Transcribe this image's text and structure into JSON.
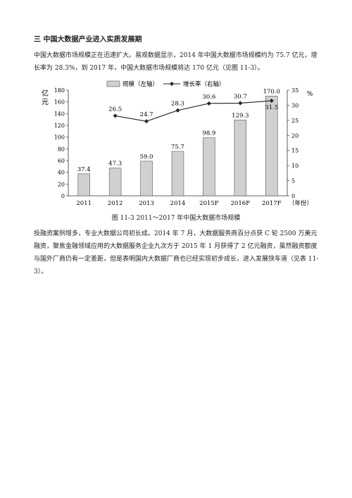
{
  "section": {
    "heading": "三  中国大数据产业进入实质发展期",
    "paragraph1": "中国大数据市场规模正在迅速扩大。易观数据显示，2014 年中国大数据市场规模约为 75.7 亿元，增长率为 28.3%，到 2017 年，中国大数据市场规模将达 170 亿元（见图 11-3）。",
    "paragraph2": "投融资案例增多，专业大数据公司初长成。2014 年 7 月，大数据服务商百分点获 C 轮 2500 万美元融资，聚焦金融领域应用的大数据服务企业九次方于 2015 年 1 月获得了 2 亿元融资，虽然融资额度与国外厂商仍有一定差距，但是表明国内大数据厂商也已经实现初步成长，进入发展快车道（见表 11-3）。"
  },
  "figure": {
    "caption": "图 11-3  2011～2017 年中国大数据市场规模"
  },
  "chart_data": {
    "type": "bar",
    "categories": [
      "2011",
      "2012",
      "2013",
      "2014",
      "2015F",
      "2016F",
      "2017F"
    ],
    "x_unit": "（年份）",
    "series": [
      {
        "name": "规模（左轴）",
        "type": "bar",
        "axis": "left",
        "values": [
          37.4,
          47.3,
          59.0,
          75.7,
          98.9,
          129.3,
          170.0
        ],
        "labels": [
          "37.4",
          "47.3",
          "59.0",
          "75.7",
          "98.9",
          "129.3",
          "170.0"
        ]
      },
      {
        "name": "增长率（右轴）",
        "type": "line",
        "axis": "right",
        "values": [
          null,
          26.5,
          24.7,
          28.3,
          30.6,
          30.7,
          31.5
        ],
        "labels": [
          "",
          "26.5",
          "24.7",
          "28.3",
          "30.6",
          "30.7",
          "31.5"
        ]
      }
    ],
    "ylabel_left": "亿元",
    "ylabel_right": "%",
    "ylim_left": [
      0,
      180
    ],
    "yticks_left": [
      0,
      20,
      40,
      60,
      80,
      100,
      120,
      140,
      160,
      180
    ],
    "ylim_right": [
      0,
      35
    ],
    "yticks_right": [
      0,
      5,
      10,
      15,
      20,
      25,
      30,
      35
    ],
    "grid": false,
    "legend": "top",
    "colors": {
      "bar_fill": "#d0d0d0",
      "bar_stroke": "#555555",
      "line": "#222222"
    }
  }
}
